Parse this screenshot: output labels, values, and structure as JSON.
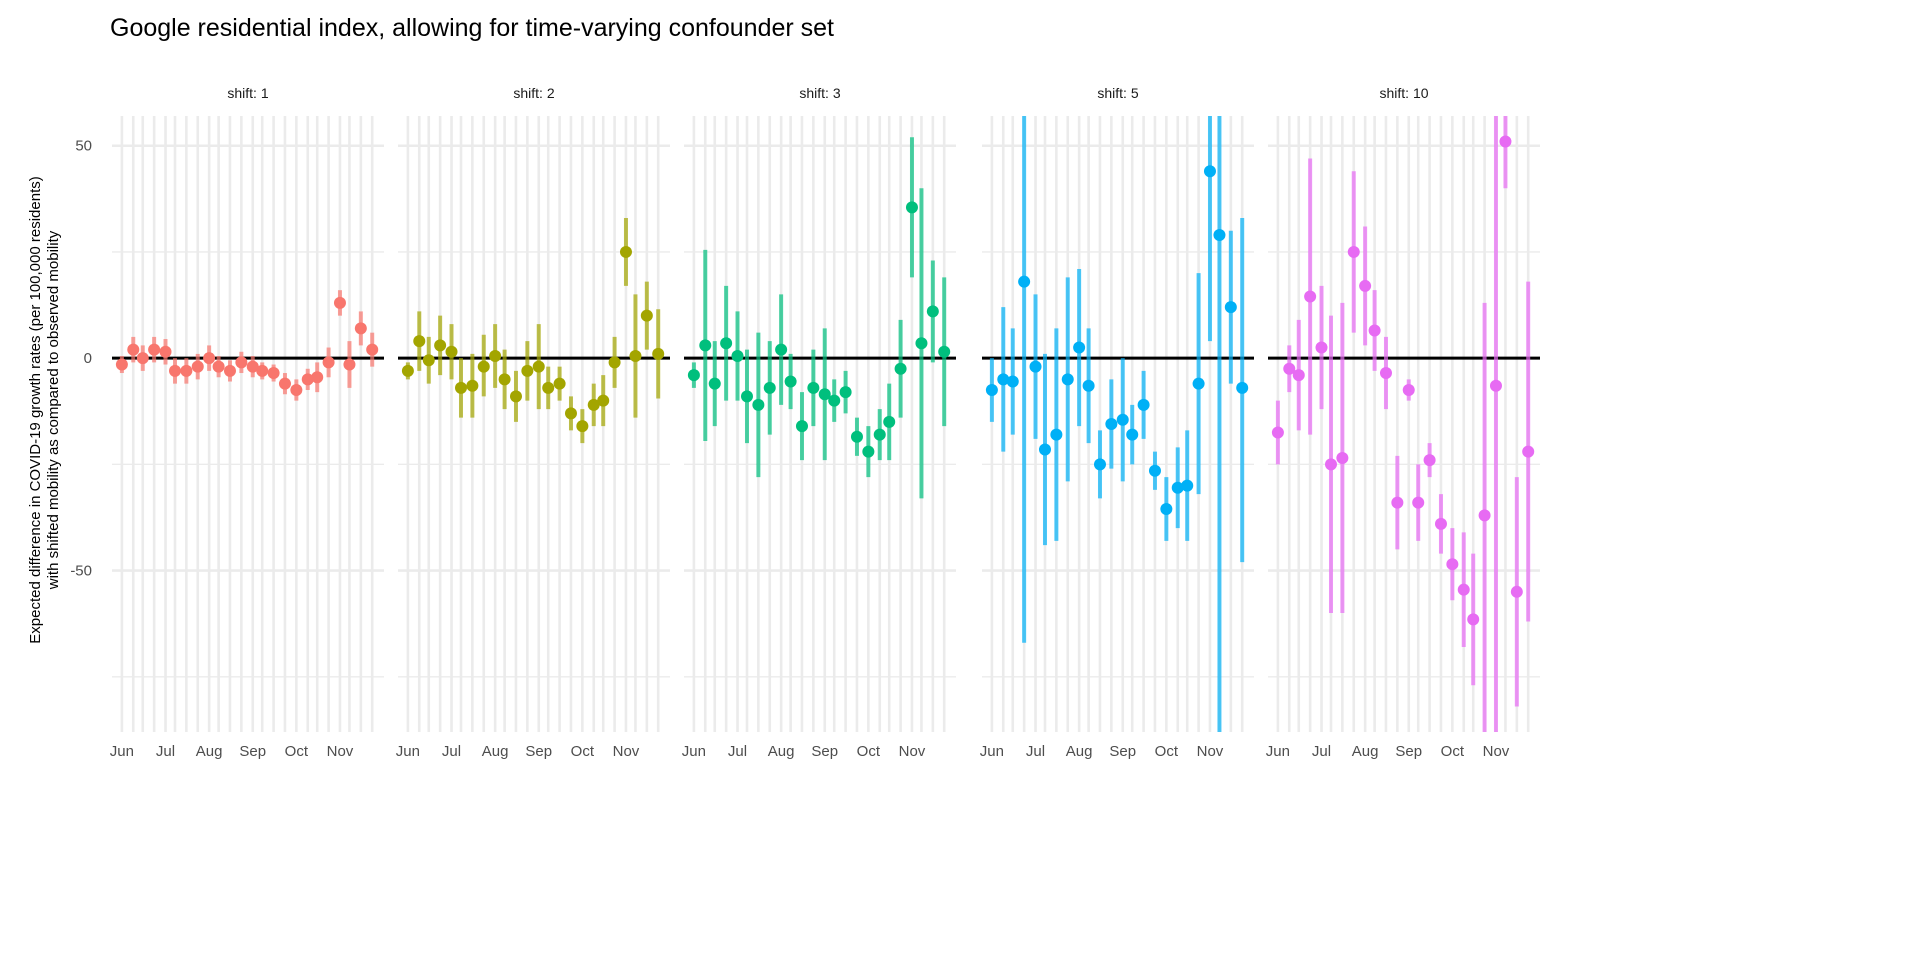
{
  "chart_data": {
    "type": "scatter",
    "title": "Google residential index, allowing for time-varying confounder set",
    "ylabel": [
      "Expected difference in COVID-19 growth rates (per 100,000 residents)",
      "with shifted mobility as compared to observed mobility"
    ],
    "xlabel": "",
    "ylim": [
      -88,
      57
    ],
    "yticks": [
      -50,
      0,
      50
    ],
    "month_ticks": [
      "Jun",
      "Jul",
      "Aug",
      "Sep",
      "Oct",
      "Nov"
    ],
    "x_day_range": [
      -1,
      134
    ],
    "reference_line": 0,
    "grid": true,
    "legend": "none",
    "x_note": "x values are day offsets from June 1 (Jun=0, Jul=30, Aug=61, Sep=92, Oct=122, Nov=153 shown as 132-ish tick)",
    "facets": [
      {
        "label": "shift: 1",
        "color": "#F8766D",
        "points": [
          {
            "x": 0,
            "y": -1.5,
            "lo": -3.5,
            "hi": 0.5
          },
          {
            "x": 6,
            "y": 2,
            "lo": -1,
            "hi": 5
          },
          {
            "x": 11,
            "y": 0,
            "lo": -3,
            "hi": 3
          },
          {
            "x": 17,
            "y": 2,
            "lo": -1,
            "hi": 5
          },
          {
            "x": 23,
            "y": 1.5,
            "lo": -1.5,
            "hi": 4.5
          },
          {
            "x": 28,
            "y": -3,
            "lo": -6,
            "hi": 0
          },
          {
            "x": 34,
            "y": -3,
            "lo": -6,
            "hi": 0
          },
          {
            "x": 40,
            "y": -2,
            "lo": -5,
            "hi": 1
          },
          {
            "x": 46,
            "y": 0,
            "lo": -3,
            "hi": 3
          },
          {
            "x": 51,
            "y": -2,
            "lo": -4.5,
            "hi": 0.5
          },
          {
            "x": 57,
            "y": -3,
            "lo": -5.5,
            "hi": -0.5
          },
          {
            "x": 63,
            "y": -1,
            "lo": -3.5,
            "hi": 1.5
          },
          {
            "x": 69,
            "y": -2,
            "lo": -4.5,
            "hi": 0.5
          },
          {
            "x": 74,
            "y": -3,
            "lo": -5,
            "hi": -1
          },
          {
            "x": 80,
            "y": -3.5,
            "lo": -5.5,
            "hi": -1.5
          },
          {
            "x": 86,
            "y": -6,
            "lo": -8.5,
            "hi": -3.5
          },
          {
            "x": 92,
            "y": -7.5,
            "lo": -10,
            "hi": -5
          },
          {
            "x": 98,
            "y": -5,
            "lo": -7.5,
            "hi": -2.5
          },
          {
            "x": 103,
            "y": -4.5,
            "lo": -8,
            "hi": -1
          },
          {
            "x": 109,
            "y": -1,
            "lo": -4.5,
            "hi": 2.5
          },
          {
            "x": 115,
            "y": 13,
            "lo": 10,
            "hi": 16
          },
          {
            "x": 120,
            "y": -1.5,
            "lo": -7,
            "hi": 4
          },
          {
            "x": 126,
            "y": 7,
            "lo": 3,
            "hi": 11
          },
          {
            "x": 132,
            "y": 2,
            "lo": -2,
            "hi": 6
          }
        ]
      },
      {
        "label": "shift: 2",
        "color": "#A3A500",
        "points": [
          {
            "x": 0,
            "y": -3,
            "lo": -5,
            "hi": -1
          },
          {
            "x": 6,
            "y": 4,
            "lo": -3,
            "hi": 11
          },
          {
            "x": 11,
            "y": -0.5,
            "lo": -6,
            "hi": 5
          },
          {
            "x": 17,
            "y": 3,
            "lo": -4,
            "hi": 10
          },
          {
            "x": 23,
            "y": 1.5,
            "lo": -5,
            "hi": 8
          },
          {
            "x": 28,
            "y": -7,
            "lo": -14,
            "hi": 0
          },
          {
            "x": 34,
            "y": -6.5,
            "lo": -14,
            "hi": 1
          },
          {
            "x": 40,
            "y": -2,
            "lo": -9,
            "hi": 5.5
          },
          {
            "x": 46,
            "y": 0.5,
            "lo": -7,
            "hi": 8
          },
          {
            "x": 51,
            "y": -5,
            "lo": -12,
            "hi": 2
          },
          {
            "x": 57,
            "y": -9,
            "lo": -15,
            "hi": -3
          },
          {
            "x": 63,
            "y": -3,
            "lo": -10,
            "hi": 4
          },
          {
            "x": 69,
            "y": -2,
            "lo": -12,
            "hi": 8
          },
          {
            "x": 74,
            "y": -7,
            "lo": -12,
            "hi": -2
          },
          {
            "x": 80,
            "y": -6,
            "lo": -10,
            "hi": -2
          },
          {
            "x": 86,
            "y": -13,
            "lo": -17,
            "hi": -9
          },
          {
            "x": 92,
            "y": -16,
            "lo": -20,
            "hi": -12
          },
          {
            "x": 98,
            "y": -11,
            "lo": -16,
            "hi": -6
          },
          {
            "x": 103,
            "y": -10,
            "lo": -16,
            "hi": -4
          },
          {
            "x": 109,
            "y": -1,
            "lo": -7,
            "hi": 5
          },
          {
            "x": 115,
            "y": 25,
            "lo": 17,
            "hi": 33
          },
          {
            "x": 120,
            "y": 0.5,
            "lo": -14,
            "hi": 15
          },
          {
            "x": 126,
            "y": 10,
            "lo": 2,
            "hi": 18
          },
          {
            "x": 132,
            "y": 1,
            "lo": -9.5,
            "hi": 11.5
          }
        ]
      },
      {
        "label": "shift: 3",
        "color": "#00BF7D",
        "points": [
          {
            "x": 0,
            "y": -4,
            "lo": -7,
            "hi": -1
          },
          {
            "x": 6,
            "y": 3,
            "lo": -19.5,
            "hi": 25.5
          },
          {
            "x": 11,
            "y": -6,
            "lo": -16,
            "hi": 4
          },
          {
            "x": 17,
            "y": 3.5,
            "lo": -10,
            "hi": 17
          },
          {
            "x": 23,
            "y": 0.5,
            "lo": -10,
            "hi": 11
          },
          {
            "x": 28,
            "y": -9,
            "lo": -20,
            "hi": 2
          },
          {
            "x": 34,
            "y": -11,
            "lo": -28,
            "hi": 6
          },
          {
            "x": 40,
            "y": -7,
            "lo": -18,
            "hi": 4
          },
          {
            "x": 46,
            "y": 2,
            "lo": -11,
            "hi": 15
          },
          {
            "x": 51,
            "y": -5.5,
            "lo": -12,
            "hi": 1
          },
          {
            "x": 57,
            "y": -16,
            "lo": -24,
            "hi": -8
          },
          {
            "x": 63,
            "y": -7,
            "lo": -16,
            "hi": 2
          },
          {
            "x": 69,
            "y": -8.5,
            "lo": -24,
            "hi": 7
          },
          {
            "x": 74,
            "y": -10,
            "lo": -15,
            "hi": -5
          },
          {
            "x": 80,
            "y": -8,
            "lo": -13,
            "hi": -3
          },
          {
            "x": 86,
            "y": -18.5,
            "lo": -23,
            "hi": -14
          },
          {
            "x": 92,
            "y": -22,
            "lo": -28,
            "hi": -16
          },
          {
            "x": 98,
            "y": -18,
            "lo": -24,
            "hi": -12
          },
          {
            "x": 103,
            "y": -15,
            "lo": -24,
            "hi": -6
          },
          {
            "x": 109,
            "y": -2.5,
            "lo": -14,
            "hi": 9
          },
          {
            "x": 115,
            "y": 35.5,
            "lo": 19,
            "hi": 52
          },
          {
            "x": 120,
            "y": 3.5,
            "lo": -33,
            "hi": 40
          },
          {
            "x": 126,
            "y": 11,
            "lo": -1,
            "hi": 23
          },
          {
            "x": 132,
            "y": 1.5,
            "lo": -16,
            "hi": 19
          }
        ]
      },
      {
        "label": "shift: 5",
        "color": "#00B0F6",
        "points": [
          {
            "x": 0,
            "y": -7.5,
            "lo": -15,
            "hi": 0
          },
          {
            "x": 6,
            "y": -5,
            "lo": -22,
            "hi": 12
          },
          {
            "x": 11,
            "y": -5.5,
            "lo": -18,
            "hi": 7
          },
          {
            "x": 17,
            "y": 18,
            "lo": -67,
            "hi": 57
          },
          {
            "x": 23,
            "y": -2,
            "lo": -19,
            "hi": 15
          },
          {
            "x": 28,
            "y": -21.5,
            "lo": -44,
            "hi": 1
          },
          {
            "x": 34,
            "y": -18,
            "lo": -43,
            "hi": 7
          },
          {
            "x": 40,
            "y": -5,
            "lo": -29,
            "hi": 19
          },
          {
            "x": 46,
            "y": 2.5,
            "lo": -16,
            "hi": 21
          },
          {
            "x": 51,
            "y": -6.5,
            "lo": -20,
            "hi": 7
          },
          {
            "x": 57,
            "y": -25,
            "lo": -33,
            "hi": -17
          },
          {
            "x": 63,
            "y": -15.5,
            "lo": -26,
            "hi": -5
          },
          {
            "x": 69,
            "y": -14.5,
            "lo": -29,
            "hi": 0
          },
          {
            "x": 74,
            "y": -18,
            "lo": -25,
            "hi": -11
          },
          {
            "x": 80,
            "y": -11,
            "lo": -19,
            "hi": -3
          },
          {
            "x": 86,
            "y": -26.5,
            "lo": -31,
            "hi": -22
          },
          {
            "x": 92,
            "y": -35.5,
            "lo": -43,
            "hi": -28
          },
          {
            "x": 98,
            "y": -30.5,
            "lo": -40,
            "hi": -21
          },
          {
            "x": 103,
            "y": -30,
            "lo": -43,
            "hi": -17
          },
          {
            "x": 109,
            "y": -6,
            "lo": -32,
            "hi": 20
          },
          {
            "x": 115,
            "y": 44,
            "lo": 4,
            "hi": 57
          },
          {
            "x": 120,
            "y": 29,
            "lo": -88,
            "hi": 57
          },
          {
            "x": 126,
            "y": 12,
            "lo": -6,
            "hi": 30
          },
          {
            "x": 132,
            "y": -7,
            "lo": -48,
            "hi": 33
          }
        ]
      },
      {
        "label": "shift: 10",
        "color": "#E76BF3",
        "points": [
          {
            "x": 0,
            "y": -17.5,
            "lo": -25,
            "hi": -10
          },
          {
            "x": 6,
            "y": -2.5,
            "lo": -8,
            "hi": 3
          },
          {
            "x": 11,
            "y": -4,
            "lo": -17,
            "hi": 9
          },
          {
            "x": 17,
            "y": 14.5,
            "lo": -18,
            "hi": 47
          },
          {
            "x": 23,
            "y": 2.5,
            "lo": -12,
            "hi": 17
          },
          {
            "x": 28,
            "y": -25,
            "lo": -60,
            "hi": 10
          },
          {
            "x": 34,
            "y": -23.5,
            "lo": -60,
            "hi": 13
          },
          {
            "x": 40,
            "y": 25,
            "lo": 6,
            "hi": 44
          },
          {
            "x": 46,
            "y": 17,
            "lo": 3,
            "hi": 31
          },
          {
            "x": 51,
            "y": 6.5,
            "lo": -3,
            "hi": 16
          },
          {
            "x": 57,
            "y": -3.5,
            "lo": -12,
            "hi": 5
          },
          {
            "x": 63,
            "y": -34,
            "lo": -45,
            "hi": -23
          },
          {
            "x": 69,
            "y": -7.5,
            "lo": -10,
            "hi": -5
          },
          {
            "x": 74,
            "y": -34,
            "lo": -43,
            "hi": -25
          },
          {
            "x": 80,
            "y": -24,
            "lo": -28,
            "hi": -20
          },
          {
            "x": 86,
            "y": -39,
            "lo": -46,
            "hi": -32
          },
          {
            "x": 92,
            "y": -48.5,
            "lo": -57,
            "hi": -40
          },
          {
            "x": 98,
            "y": -54.5,
            "lo": -68,
            "hi": -41
          },
          {
            "x": 103,
            "y": -61.5,
            "lo": -77,
            "hi": -46
          },
          {
            "x": 109,
            "y": -37,
            "lo": -88,
            "hi": 13
          },
          {
            "x": 115,
            "y": -6.5,
            "lo": -88,
            "hi": 57
          },
          {
            "x": 120,
            "y": 51,
            "lo": 40,
            "hi": 57
          },
          {
            "x": 126,
            "y": -55,
            "lo": -82,
            "hi": -28
          },
          {
            "x": 132,
            "y": -22,
            "lo": -62,
            "hi": 18
          }
        ]
      }
    ]
  }
}
